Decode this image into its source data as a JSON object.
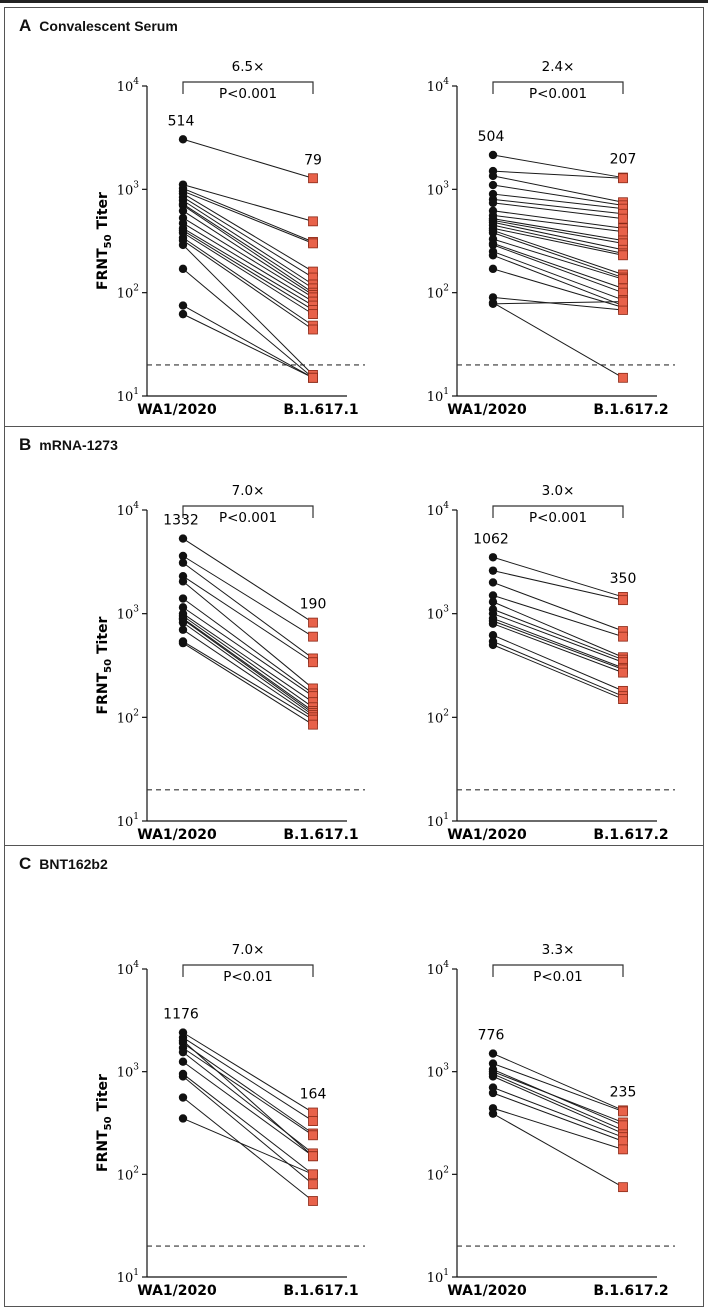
{
  "colors": {
    "pair_line": "#1a1a1a",
    "ancestral_marker": "#111111",
    "variant_marker": "#e8624a",
    "variant_stroke": "#8a2a18",
    "threshold_line": "#333333"
  },
  "chart_data": [
    {
      "panel": "A",
      "title": "Convalescent Serum",
      "type": "line",
      "ylabel": "FRNT50 Titer",
      "ylabel_main": "FRNT",
      "ylabel_sub": "50",
      "ylabel_rest": " Titer",
      "yscale": "log",
      "ylim": [
        10,
        10000
      ],
      "ytick_base": "10",
      "ytick_exponents": [
        "1",
        "2",
        "3",
        "4"
      ],
      "detection_limit": 20,
      "plots": [
        {
          "categories": [
            "WA1/2020",
            "B.1.617.1"
          ],
          "fold_change": "6.5×",
          "p_value": "P<0.001",
          "median_labels": [
            "514",
            "79"
          ],
          "pairs": [
            [
              3050,
              1280
            ],
            [
              1110,
              490
            ],
            [
              1020,
              310
            ],
            [
              960,
              300
            ],
            [
              910,
              160
            ],
            [
              840,
              140
            ],
            [
              780,
              120
            ],
            [
              720,
              110
            ],
            [
              700,
              100
            ],
            [
              620,
              95
            ],
            [
              530,
              90
            ],
            [
              470,
              82
            ],
            [
              420,
              75
            ],
            [
              400,
              68
            ],
            [
              380,
              62
            ],
            [
              340,
              48
            ],
            [
              320,
              44
            ],
            [
              290,
              16
            ],
            [
              170,
              15
            ],
            [
              75,
              15
            ],
            [
              62,
              15
            ]
          ]
        },
        {
          "categories": [
            "WA1/2020",
            "B.1.617.2"
          ],
          "fold_change": "2.4×",
          "p_value": "P<0.001",
          "median_labels": [
            "504",
            "207"
          ],
          "pairs": [
            [
              2150,
              1300
            ],
            [
              1500,
              1280
            ],
            [
              1350,
              750
            ],
            [
              1100,
              700
            ],
            [
              900,
              650
            ],
            [
              800,
              580
            ],
            [
              740,
              520
            ],
            [
              620,
              420
            ],
            [
              560,
              390
            ],
            [
              520,
              320
            ],
            [
              500,
              300
            ],
            [
              480,
              260
            ],
            [
              450,
              240
            ],
            [
              420,
              230
            ],
            [
              400,
              150
            ],
            [
              380,
              140
            ],
            [
              330,
              135
            ],
            [
              300,
              110
            ],
            [
              290,
              100
            ],
            [
              250,
              85
            ],
            [
              230,
              75
            ],
            [
              170,
              72
            ],
            [
              90,
              68
            ],
            [
              80,
              15
            ],
            [
              78,
              82
            ]
          ]
        }
      ]
    },
    {
      "panel": "B",
      "title": "mRNA-1273",
      "type": "line",
      "ylabel": "FRNT50 Titer",
      "ylabel_main": "FRNT",
      "ylabel_sub": "50",
      "ylabel_rest": " Titer",
      "yscale": "log",
      "ylim": [
        10,
        10000
      ],
      "ytick_base": "10",
      "ytick_exponents": [
        "1",
        "2",
        "3",
        "4"
      ],
      "detection_limit": 20,
      "plots": [
        {
          "categories": [
            "WA1/2020",
            "B.1.617.1"
          ],
          "fold_change": "7.0×",
          "p_value": "P<0.001",
          "median_labels": [
            "1332",
            "190"
          ],
          "pairs": [
            [
              5300,
              820
            ],
            [
              3600,
              600
            ],
            [
              3100,
              370
            ],
            [
              2300,
              340
            ],
            [
              2050,
              190
            ],
            [
              1400,
              170
            ],
            [
              1150,
              160
            ],
            [
              1000,
              140
            ],
            [
              950,
              125
            ],
            [
              900,
              115
            ],
            [
              880,
              110
            ],
            [
              820,
              105
            ],
            [
              700,
              100
            ],
            [
              540,
              95
            ],
            [
              520,
              85
            ]
          ]
        },
        {
          "categories": [
            "WA1/2020",
            "B.1.617.2"
          ],
          "fold_change": "3.0×",
          "p_value": "P<0.001",
          "median_labels": [
            "1062",
            "350"
          ],
          "pairs": [
            [
              3500,
              1450
            ],
            [
              2600,
              1350
            ],
            [
              2000,
              680
            ],
            [
              1500,
              600
            ],
            [
              1300,
              380
            ],
            [
              1100,
              360
            ],
            [
              1000,
              340
            ],
            [
              900,
              300
            ],
            [
              850,
              290
            ],
            [
              800,
              270
            ],
            [
              620,
              180
            ],
            [
              540,
              160
            ],
            [
              500,
              150
            ]
          ]
        }
      ]
    },
    {
      "panel": "C",
      "title": "BNT162b2",
      "type": "line",
      "ylabel": "FRNT50 Titer",
      "ylabel_main": "FRNT",
      "ylabel_sub": "50",
      "ylabel_rest": " Titer",
      "yscale": "log",
      "ylim": [
        10,
        10000
      ],
      "ytick_base": "10",
      "ytick_exponents": [
        "1",
        "2",
        "3",
        "4"
      ],
      "detection_limit": 20,
      "plots": [
        {
          "categories": [
            "WA1/2020",
            "B.1.617.1"
          ],
          "fold_change": "7.0×",
          "p_value": "P<0.01",
          "median_labels": [
            "1176",
            "164"
          ],
          "pairs": [
            [
              2400,
              400
            ],
            [
              2150,
              330
            ],
            [
              1900,
              250
            ],
            [
              1700,
              240
            ],
            [
              1550,
              160
            ],
            [
              1250,
              150
            ],
            [
              950,
              100
            ],
            [
              900,
              80
            ],
            [
              560,
              55
            ],
            [
              350,
              100
            ],
            [
              2000,
              150
            ]
          ]
        },
        {
          "categories": [
            "WA1/2020",
            "B.1.617.2"
          ],
          "fold_change": "3.3×",
          "p_value": "P<0.01",
          "median_labels": [
            "776",
            "235"
          ],
          "pairs": [
            [
              1500,
              420
            ],
            [
              1200,
              410
            ],
            [
              1000,
              320
            ],
            [
              950,
              270
            ],
            [
              900,
              250
            ],
            [
              700,
              230
            ],
            [
              620,
              210
            ],
            [
              440,
              175
            ],
            [
              390,
              75
            ],
            [
              1050,
              300
            ]
          ]
        }
      ]
    }
  ]
}
